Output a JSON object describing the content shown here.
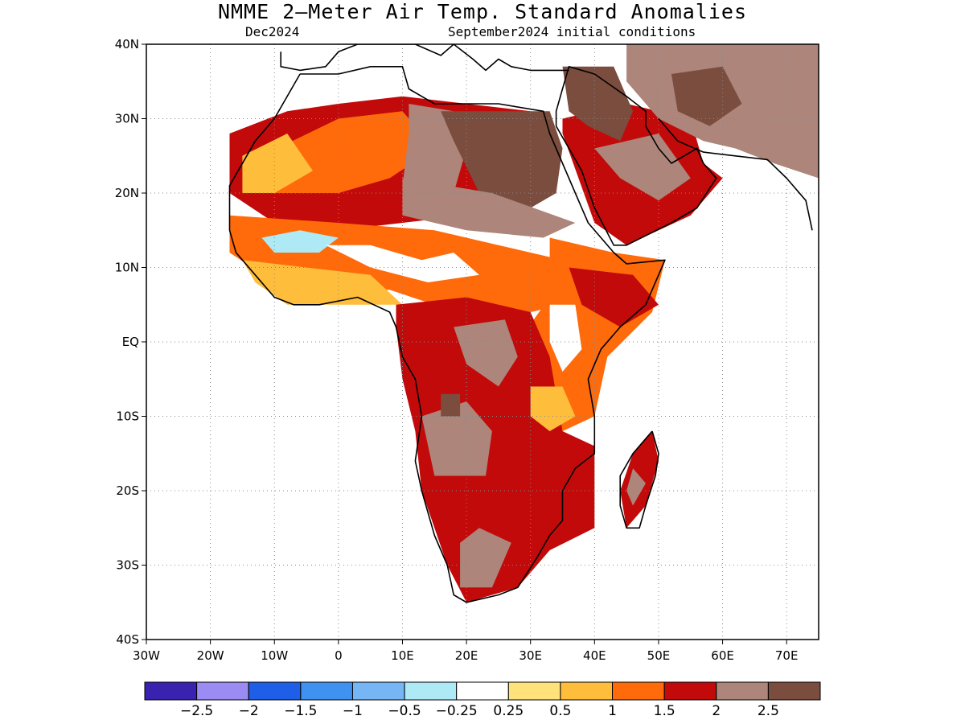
{
  "title": "NMME 2—Meter Air Temp. Standard Anomalies",
  "subtitle_left": "Dec2024",
  "subtitle_right": "September2024 initial conditions",
  "map": {
    "lon_range": [
      -30,
      75
    ],
    "lat_range": [
      -40,
      40
    ],
    "lat_ticks": [
      {
        "value": 40,
        "label": "40N"
      },
      {
        "value": 30,
        "label": "30N"
      },
      {
        "value": 20,
        "label": "20N"
      },
      {
        "value": 10,
        "label": "10N"
      },
      {
        "value": 0,
        "label": "EQ"
      },
      {
        "value": -10,
        "label": "10S"
      },
      {
        "value": -20,
        "label": "20S"
      },
      {
        "value": -30,
        "label": "30S"
      },
      {
        "value": -40,
        "label": "40S"
      }
    ],
    "lon_ticks": [
      {
        "value": -30,
        "label": "30W"
      },
      {
        "value": -20,
        "label": "20W"
      },
      {
        "value": -10,
        "label": "10W"
      },
      {
        "value": 0,
        "label": "0"
      },
      {
        "value": 10,
        "label": "10E"
      },
      {
        "value": 20,
        "label": "20E"
      },
      {
        "value": 30,
        "label": "30E"
      },
      {
        "value": 40,
        "label": "40E"
      },
      {
        "value": 50,
        "label": "50E"
      },
      {
        "value": 60,
        "label": "60E"
      },
      {
        "value": 70,
        "label": "70E"
      }
    ],
    "grid": true
  },
  "colorbar": {
    "colors": [
      "#3a22b0",
      "#9a8cf2",
      "#1f5ee6",
      "#3f92ef",
      "#76b6f5",
      "#aeeaf6",
      "#ffffff",
      "#ffe27a",
      "#ffbd3c",
      "#ff6a0a",
      "#c20a0a",
      "#ad857a",
      "#7a4d3e"
    ],
    "labels": [
      "−2.5",
      "−2",
      "−1.5",
      "−1",
      "−0.5",
      "−0.25",
      "0.25",
      "0.5",
      "1",
      "1.5",
      "2",
      "2.5"
    ]
  },
  "regions": [
    {
      "name": "sahara-north",
      "lonlat": [
        [
          -17,
          28
        ],
        [
          -8,
          31
        ],
        [
          0,
          32
        ],
        [
          10,
          33
        ],
        [
          20,
          32
        ],
        [
          30,
          31
        ],
        [
          32,
          26
        ],
        [
          30,
          20
        ],
        [
          20,
          17
        ],
        [
          10,
          16
        ],
        [
          0,
          15
        ],
        [
          -10,
          16
        ],
        [
          -17,
          20
        ]
      ],
      "anomaly": 1.5
    },
    {
      "name": "north-interior",
      "lonlat": [
        [
          -12,
          25
        ],
        [
          0,
          30
        ],
        [
          10,
          31
        ],
        [
          15,
          26
        ],
        [
          8,
          22
        ],
        [
          0,
          20
        ],
        [
          -10,
          20
        ]
      ],
      "anomaly": 1.0
    },
    {
      "name": "libya-hot",
      "lonlat": [
        [
          11,
          32
        ],
        [
          18,
          31
        ],
        [
          20,
          26
        ],
        [
          18,
          20
        ],
        [
          10,
          21
        ],
        [
          11,
          28
        ]
      ],
      "anomaly": 2.0
    },
    {
      "name": "egypt-brown",
      "lonlat": [
        [
          16,
          31
        ],
        [
          33,
          31
        ],
        [
          35,
          26
        ],
        [
          34,
          20
        ],
        [
          30,
          18
        ],
        [
          22,
          20
        ],
        [
          18,
          27
        ]
      ],
      "anomaly": 2.5
    },
    {
      "name": "chad-hot",
      "lonlat": [
        [
          10,
          22
        ],
        [
          24,
          20
        ],
        [
          37,
          16
        ],
        [
          32,
          14
        ],
        [
          20,
          15
        ],
        [
          10,
          17
        ]
      ],
      "anomaly": 2.0
    },
    {
      "name": "sahel",
      "lonlat": [
        [
          -17,
          17
        ],
        [
          0,
          16
        ],
        [
          15,
          15
        ],
        [
          25,
          13
        ],
        [
          35,
          11
        ],
        [
          40,
          9
        ],
        [
          35,
          5
        ],
        [
          25,
          3
        ],
        [
          15,
          5
        ],
        [
          8,
          7
        ],
        [
          0,
          7
        ],
        [
          -10,
          8
        ],
        [
          -17,
          12
        ]
      ],
      "anomaly": 1.0
    },
    {
      "name": "sahel-cool",
      "lonlat": [
        [
          -12,
          14
        ],
        [
          -6,
          15
        ],
        [
          0,
          14
        ],
        [
          -3,
          12
        ],
        [
          -10,
          12
        ]
      ],
      "anomaly": -0.5
    },
    {
      "name": "sahel-white",
      "lonlat": [
        [
          -2,
          13
        ],
        [
          5,
          13
        ],
        [
          13,
          11
        ],
        [
          18,
          12
        ],
        [
          22,
          9
        ],
        [
          14,
          8
        ],
        [
          5,
          10
        ]
      ],
      "anomaly": 0.0
    },
    {
      "name": "guinea-coast",
      "lonlat": [
        [
          -15,
          11
        ],
        [
          -5,
          10
        ],
        [
          5,
          9
        ],
        [
          10,
          5
        ],
        [
          0,
          5
        ],
        [
          -8,
          5
        ],
        [
          -13,
          8
        ]
      ],
      "anomaly": 0.5
    },
    {
      "name": "arabia",
      "lonlat": [
        [
          35,
          30
        ],
        [
          45,
          32
        ],
        [
          55,
          30
        ],
        [
          57,
          24
        ],
        [
          60,
          22
        ],
        [
          55,
          17
        ],
        [
          45,
          13
        ],
        [
          40,
          16
        ],
        [
          35,
          28
        ]
      ],
      "anomaly": 1.5
    },
    {
      "name": "arabia-brown",
      "lonlat": [
        [
          35,
          37
        ],
        [
          43,
          37
        ],
        [
          46,
          31
        ],
        [
          44,
          27
        ],
        [
          39,
          29
        ],
        [
          36,
          31
        ]
      ],
      "anomaly": 2.5
    },
    {
      "name": "arabia-hot",
      "lonlat": [
        [
          40,
          26
        ],
        [
          50,
          28
        ],
        [
          55,
          22
        ],
        [
          50,
          19
        ],
        [
          44,
          22
        ]
      ],
      "anomaly": 2.0
    },
    {
      "name": "iran-hot",
      "lonlat": [
        [
          45,
          40
        ],
        [
          75,
          40
        ],
        [
          75,
          22
        ],
        [
          68,
          24
        ],
        [
          62,
          26
        ],
        [
          57,
          27
        ],
        [
          50,
          30
        ],
        [
          45,
          35
        ]
      ],
      "anomaly": 2.0
    },
    {
      "name": "iran-brown",
      "lonlat": [
        [
          52,
          36
        ],
        [
          60,
          37
        ],
        [
          63,
          32
        ],
        [
          58,
          29
        ],
        [
          53,
          31
        ]
      ],
      "anomaly": 2.5
    },
    {
      "name": "east-africa",
      "lonlat": [
        [
          33,
          14
        ],
        [
          43,
          12
        ],
        [
          51,
          11
        ],
        [
          49,
          4
        ],
        [
          42,
          -2
        ],
        [
          40,
          -10
        ],
        [
          35,
          -12
        ],
        [
          30,
          -5
        ],
        [
          28,
          0
        ],
        [
          33,
          6
        ]
      ],
      "anomaly": 1.0
    },
    {
      "name": "horn-hot",
      "lonlat": [
        [
          36,
          10
        ],
        [
          46,
          9
        ],
        [
          50,
          5
        ],
        [
          44,
          2
        ],
        [
          38,
          5
        ]
      ],
      "anomaly": 1.5
    },
    {
      "name": "kenya-white",
      "lonlat": [
        [
          33,
          5
        ],
        [
          37,
          5
        ],
        [
          38,
          -1
        ],
        [
          35,
          -4
        ],
        [
          33,
          0
        ]
      ],
      "anomaly": 0.0
    },
    {
      "name": "central-africa",
      "lonlat": [
        [
          9,
          5
        ],
        [
          20,
          6
        ],
        [
          30,
          4
        ],
        [
          33,
          -2
        ],
        [
          35,
          -12
        ],
        [
          40,
          -14
        ],
        [
          40,
          -25
        ],
        [
          33,
          -28
        ],
        [
          28,
          -33
        ],
        [
          20,
          -35
        ],
        [
          17,
          -30
        ],
        [
          13,
          -20
        ],
        [
          12,
          -12
        ],
        [
          10,
          -5
        ],
        [
          9,
          2
        ]
      ],
      "anomaly": 1.5
    },
    {
      "name": "congo-hot",
      "lonlat": [
        [
          13,
          -10
        ],
        [
          20,
          -8
        ],
        [
          24,
          -12
        ],
        [
          23,
          -18
        ],
        [
          15,
          -18
        ]
      ],
      "anomaly": 2.0
    },
    {
      "name": "congo-north-hot",
      "lonlat": [
        [
          18,
          2
        ],
        [
          26,
          3
        ],
        [
          28,
          -2
        ],
        [
          25,
          -6
        ],
        [
          20,
          -3
        ]
      ],
      "anomaly": 2.0
    },
    {
      "name": "angola-brown",
      "lonlat": [
        [
          16,
          -7
        ],
        [
          19,
          -7
        ],
        [
          19,
          -10
        ],
        [
          16,
          -10
        ]
      ],
      "anomaly": 2.5
    },
    {
      "name": "south-hot",
      "lonlat": [
        [
          19,
          -27
        ],
        [
          22,
          -25
        ],
        [
          27,
          -27
        ],
        [
          24,
          -33
        ],
        [
          19,
          -33
        ]
      ],
      "anomaly": 2.0
    },
    {
      "name": "madagascar",
      "lonlat": [
        [
          49,
          -12
        ],
        [
          50,
          -16
        ],
        [
          48,
          -22
        ],
        [
          45,
          -25
        ],
        [
          44,
          -20
        ],
        [
          46,
          -15
        ]
      ],
      "anomaly": 1.5
    },
    {
      "name": "madagascar-hot",
      "lonlat": [
        [
          46,
          -17
        ],
        [
          48,
          -19
        ],
        [
          46,
          -22
        ],
        [
          45,
          -20
        ]
      ],
      "anomaly": 2.0
    },
    {
      "name": "tanzania-light",
      "lonlat": [
        [
          30,
          -6
        ],
        [
          35,
          -6
        ],
        [
          37,
          -10
        ],
        [
          33,
          -12
        ],
        [
          30,
          -10
        ]
      ],
      "anomaly": 0.5
    },
    {
      "name": "northwest-light",
      "lonlat": [
        [
          -15,
          25
        ],
        [
          -8,
          28
        ],
        [
          -4,
          23
        ],
        [
          -10,
          20
        ],
        [
          -15,
          20
        ]
      ],
      "anomaly": 0.5
    }
  ],
  "coastlines": [
    {
      "name": "africa-coast",
      "lonlat": [
        [
          -6,
          36
        ],
        [
          -10,
          30
        ],
        [
          -13,
          27
        ],
        [
          -17,
          21
        ],
        [
          -17,
          15
        ],
        [
          -16,
          12
        ],
        [
          -13,
          9
        ],
        [
          -10,
          6
        ],
        [
          -7,
          5
        ],
        [
          -3,
          5
        ],
        [
          3,
          6
        ],
        [
          8,
          4
        ],
        [
          9,
          2
        ],
        [
          10,
          -2
        ],
        [
          12,
          -5
        ],
        [
          13,
          -10
        ],
        [
          12,
          -16
        ],
        [
          13,
          -20
        ],
        [
          15,
          -26
        ],
        [
          17,
          -30
        ],
        [
          18,
          -34
        ],
        [
          20,
          -35
        ],
        [
          25,
          -34
        ],
        [
          28,
          -33
        ],
        [
          31,
          -29
        ],
        [
          33,
          -26
        ],
        [
          35,
          -24
        ],
        [
          35,
          -20
        ],
        [
          37,
          -17
        ],
        [
          40,
          -15
        ],
        [
          40,
          -10
        ],
        [
          39,
          -5
        ],
        [
          41,
          -1
        ],
        [
          44,
          2
        ],
        [
          48,
          5
        ],
        [
          51,
          11
        ],
        [
          45,
          10.5
        ],
        [
          43,
          12
        ],
        [
          39,
          16
        ],
        [
          37,
          20
        ],
        [
          35,
          24
        ],
        [
          33,
          28
        ],
        [
          32,
          31
        ],
        [
          25,
          32
        ],
        [
          20,
          32
        ],
        [
          15,
          32
        ],
        [
          11,
          34
        ],
        [
          10,
          37
        ],
        [
          5,
          37
        ],
        [
          0,
          36
        ],
        [
          -6,
          36
        ]
      ]
    },
    {
      "name": "arabia-coast",
      "lonlat": [
        [
          34,
          29
        ],
        [
          36,
          26
        ],
        [
          38,
          23
        ],
        [
          40,
          18
        ],
        [
          43,
          13
        ],
        [
          45,
          13
        ],
        [
          52,
          16
        ],
        [
          56,
          18
        ],
        [
          59,
          22
        ],
        [
          57,
          24
        ],
        [
          56,
          26
        ],
        [
          52,
          24
        ],
        [
          50,
          26
        ],
        [
          48,
          29
        ],
        [
          48,
          31
        ],
        [
          45,
          33
        ],
        [
          40,
          36
        ],
        [
          36,
          37
        ],
        [
          35,
          34
        ],
        [
          34,
          31
        ],
        [
          34,
          29
        ]
      ]
    },
    {
      "name": "iran-coast",
      "lonlat": [
        [
          50,
          30
        ],
        [
          53,
          27
        ],
        [
          57,
          25.5
        ],
        [
          62,
          25
        ],
        [
          67,
          24.5
        ],
        [
          70,
          22
        ],
        [
          73,
          19
        ],
        [
          74,
          15
        ]
      ]
    },
    {
      "name": "madagascar-coast",
      "lonlat": [
        [
          49,
          -12
        ],
        [
          50,
          -15
        ],
        [
          49.5,
          -18
        ],
        [
          48,
          -22
        ],
        [
          47,
          -25
        ],
        [
          45,
          -25
        ],
        [
          44,
          -22
        ],
        [
          44,
          -18
        ],
        [
          46,
          -15
        ],
        [
          48,
          -13
        ],
        [
          49,
          -12
        ]
      ]
    },
    {
      "name": "europe-coast",
      "lonlat": [
        [
          -9,
          39
        ],
        [
          -9,
          37
        ],
        [
          -6,
          36.5
        ],
        [
          -2,
          37
        ],
        [
          0,
          39
        ],
        [
          3,
          40
        ],
        [
          12,
          40
        ],
        [
          16,
          38.5
        ],
        [
          18,
          40
        ],
        [
          21,
          38
        ],
        [
          23,
          36.5
        ],
        [
          25,
          38
        ],
        [
          27,
          37
        ],
        [
          30,
          36.5
        ],
        [
          36,
          36.5
        ]
      ]
    }
  ]
}
